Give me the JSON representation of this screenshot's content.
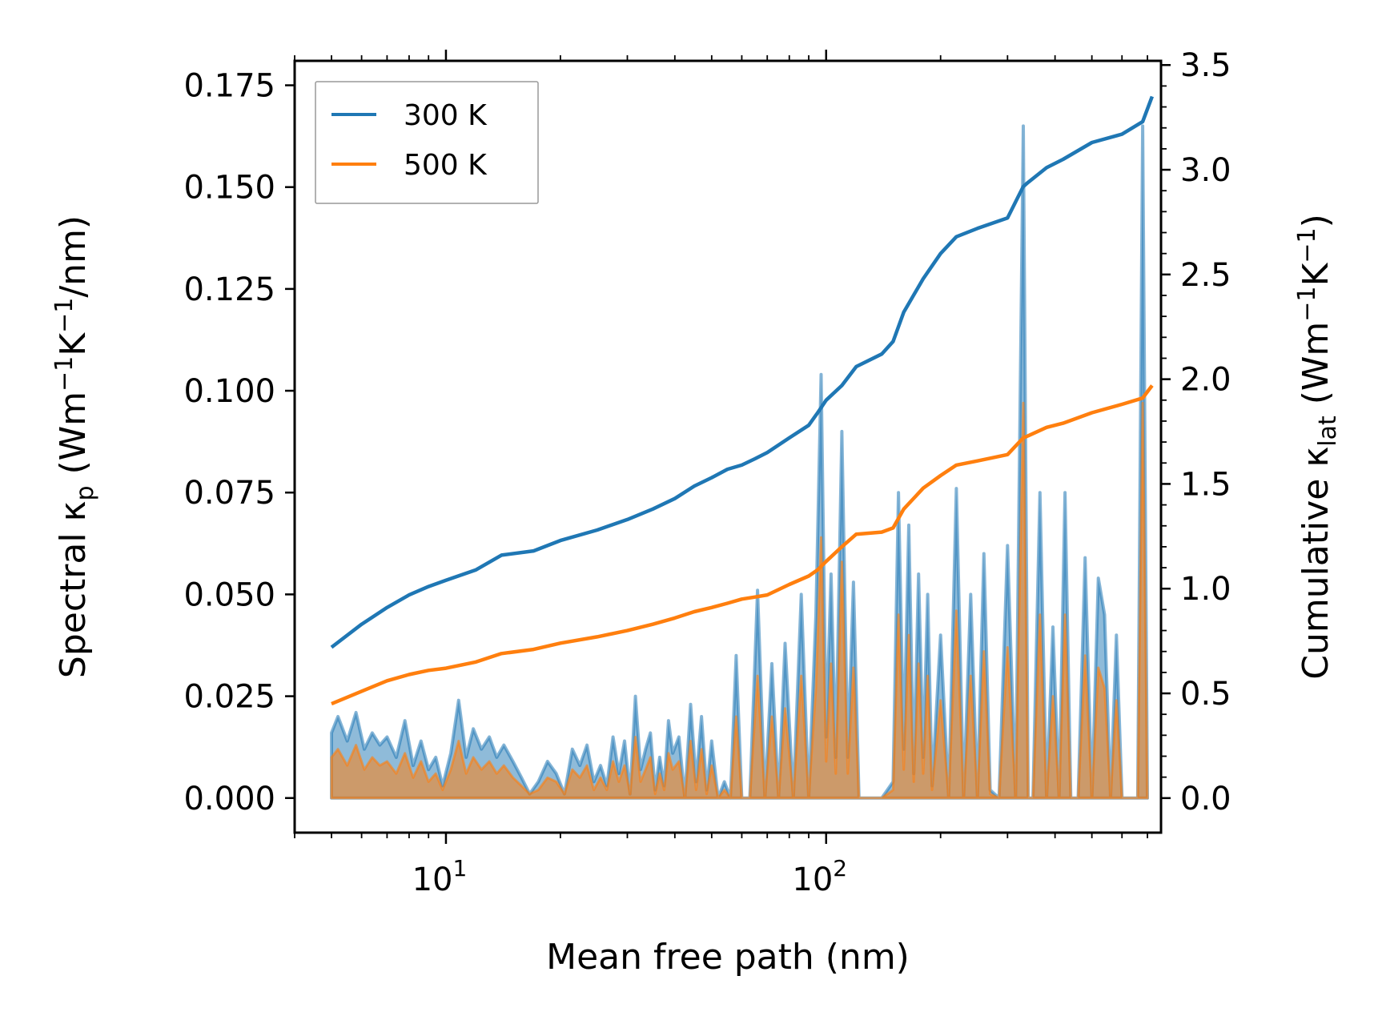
{
  "chart_data": {
    "type": "line",
    "xlabel": "Mean free path (nm)",
    "ylabel_left": {
      "main": "Spectral κ",
      "sub": "p",
      "unit_pre": " (Wm",
      "sup1": "−1",
      "unit_mid": "K",
      "sup2": "−1",
      "unit_post": "/nm)"
    },
    "ylabel_right": {
      "main": "Cumulative κ",
      "sub": "lat",
      "unit_pre": " (Wm",
      "sup1": "−1",
      "unit_mid": "K",
      "sup2": "−1",
      "unit_post": ")"
    },
    "x_scale": "log",
    "xlim": [
      4.0,
      760
    ],
    "ylim_left": [
      -0.0085,
      0.181
    ],
    "ylim_right": [
      -0.165,
      3.52
    ],
    "x_ticks": [
      {
        "value": 10,
        "base": "10",
        "exp": "1"
      },
      {
        "value": 100,
        "base": "10",
        "exp": "2"
      }
    ],
    "y_ticks_left": [
      "0.000",
      "0.025",
      "0.050",
      "0.075",
      "0.100",
      "0.125",
      "0.150",
      "0.175"
    ],
    "y_ticks_right": [
      "0.0",
      "0.5",
      "1.0",
      "1.5",
      "2.0",
      "2.5",
      "3.0",
      "3.5"
    ],
    "legend": {
      "position": "top-left",
      "entries": [
        "300 K",
        "500 K"
      ]
    },
    "colors": {
      "s300": "#1f77b4",
      "s500": "#ff7f0e"
    },
    "series": [
      {
        "name": "300 K",
        "cumulative": {
          "x": [
            5.0,
            6.0,
            7.0,
            8.0,
            9.0,
            10.0,
            12.0,
            14.0,
            17.0,
            20.0,
            25.0,
            30.0,
            35.0,
            40.0,
            45.0,
            50.0,
            55.0,
            60.0,
            65.0,
            70.0,
            80.0,
            90.0,
            95.0,
            100.0,
            110.0,
            120.0,
            140.0,
            150.0,
            160.0,
            180.0,
            200.0,
            220.0,
            250.0,
            300.0,
            330.0,
            340.0,
            380.0,
            420.0,
            500.0,
            600.0,
            680.0,
            720.0
          ],
          "y": [
            0.72,
            0.83,
            0.91,
            0.97,
            1.01,
            1.04,
            1.09,
            1.16,
            1.18,
            1.23,
            1.28,
            1.33,
            1.38,
            1.43,
            1.49,
            1.53,
            1.57,
            1.59,
            1.62,
            1.65,
            1.72,
            1.78,
            1.84,
            1.9,
            1.97,
            2.06,
            2.12,
            2.18,
            2.32,
            2.48,
            2.6,
            2.68,
            2.72,
            2.77,
            2.92,
            2.94,
            3.01,
            3.05,
            3.13,
            3.17,
            3.23,
            3.35
          ]
        },
        "spectral": {
          "x": [
            5.0,
            5.2,
            5.5,
            5.8,
            6.1,
            6.4,
            6.7,
            7.0,
            7.4,
            7.8,
            8.2,
            8.6,
            9.0,
            9.4,
            9.8,
            10.3,
            10.8,
            11.3,
            11.8,
            12.4,
            13.0,
            13.6,
            14.2,
            15.0,
            15.8,
            16.6,
            17.5,
            18.5,
            19.5,
            20.5,
            21.5,
            22.5,
            23.5,
            24.5,
            25.5,
            26.5,
            27.5,
            28.5,
            29.5,
            30.5,
            31.5,
            32.5,
            33.5,
            34.5,
            35.5,
            36.5,
            37.5,
            38.5,
            39.5,
            41.0,
            42.5,
            44.0,
            45.5,
            47.0,
            48.5,
            50.0,
            52.0,
            54.0,
            56.0,
            58.0,
            60.0,
            63.0,
            66.0,
            69.0,
            72.0,
            75.0,
            78.0,
            82.0,
            86.0,
            90.0,
            94.0,
            97.0,
            100.0,
            103.0,
            106.0,
            110.0,
            114.0,
            118.0,
            122.0,
            126.0,
            130.0,
            140.0,
            150.0,
            155.0,
            160.0,
            165.0,
            170.0,
            175.0,
            180.0,
            185.0,
            190.0,
            200.0,
            210.0,
            220.0,
            230.0,
            240.0,
            250.0,
            260.0,
            270.0,
            285.0,
            300.0,
            315.0,
            330.0,
            340.0,
            350.0,
            365.0,
            380.0,
            395.0,
            410.0,
            425.0,
            440.0,
            460.0,
            480.0,
            500.0,
            520.0,
            540.0,
            560.0,
            580.0,
            600.0,
            620.0,
            640.0,
            660.0,
            680.0,
            700.0
          ],
          "y300": [
            0.016,
            0.02,
            0.014,
            0.021,
            0.012,
            0.016,
            0.013,
            0.015,
            0.01,
            0.019,
            0.008,
            0.014,
            0.007,
            0.01,
            0.003,
            0.011,
            0.024,
            0.01,
            0.017,
            0.012,
            0.015,
            0.01,
            0.013,
            0.009,
            0.005,
            0.001,
            0.004,
            0.009,
            0.006,
            0.001,
            0.012,
            0.008,
            0.013,
            0.004,
            0.008,
            0.003,
            0.015,
            0.006,
            0.014,
            0.001,
            0.025,
            0.007,
            0.012,
            0.016,
            0.002,
            0.01,
            0.003,
            0.019,
            0.011,
            0.015,
            0.0,
            0.023,
            0.004,
            0.02,
            0.002,
            0.014,
            0.0,
            0.004,
            0.0,
            0.035,
            0.0,
            0.0,
            0.051,
            0.0,
            0.033,
            0.0,
            0.038,
            0.0,
            0.05,
            0.0,
            0.045,
            0.104,
            0.015,
            0.055,
            0.01,
            0.09,
            0.01,
            0.053,
            0.0,
            0.0,
            0.0,
            0.0,
            0.004,
            0.075,
            0.012,
            0.067,
            0.006,
            0.055,
            0.01,
            0.05,
            0.003,
            0.04,
            0.0,
            0.076,
            0.0,
            0.05,
            0.0,
            0.06,
            0.002,
            0.0,
            0.062,
            0.0,
            0.165,
            0.0,
            0.0,
            0.075,
            0.0,
            0.042,
            0.0,
            0.075,
            0.0,
            0.0,
            0.059,
            0.0,
            0.054,
            0.045,
            0.0,
            0.04,
            0.0,
            0.0,
            0.0,
            0.0,
            0.165,
            0.0
          ],
          "y500": [
            0.01,
            0.012,
            0.008,
            0.013,
            0.007,
            0.01,
            0.008,
            0.009,
            0.006,
            0.011,
            0.005,
            0.009,
            0.004,
            0.006,
            0.002,
            0.007,
            0.014,
            0.006,
            0.01,
            0.007,
            0.009,
            0.006,
            0.008,
            0.005,
            0.003,
            0.001,
            0.002,
            0.005,
            0.004,
            0.001,
            0.007,
            0.005,
            0.008,
            0.002,
            0.005,
            0.002,
            0.009,
            0.004,
            0.008,
            0.001,
            0.015,
            0.004,
            0.007,
            0.01,
            0.001,
            0.006,
            0.002,
            0.011,
            0.007,
            0.009,
            0.0,
            0.014,
            0.002,
            0.012,
            0.001,
            0.008,
            0.0,
            0.002,
            0.0,
            0.02,
            0.0,
            0.0,
            0.03,
            0.0,
            0.02,
            0.0,
            0.022,
            0.0,
            0.03,
            0.0,
            0.027,
            0.064,
            0.009,
            0.033,
            0.006,
            0.058,
            0.006,
            0.032,
            0.0,
            0.0,
            0.0,
            0.0,
            0.002,
            0.045,
            0.007,
            0.04,
            0.004,
            0.033,
            0.006,
            0.03,
            0.002,
            0.024,
            0.0,
            0.046,
            0.0,
            0.03,
            0.0,
            0.036,
            0.001,
            0.0,
            0.037,
            0.0,
            0.097,
            0.0,
            0.0,
            0.045,
            0.0,
            0.025,
            0.0,
            0.045,
            0.0,
            0.0,
            0.035,
            0.0,
            0.032,
            0.027,
            0.0,
            0.024,
            0.0,
            0.0,
            0.0,
            0.0,
            0.097,
            0.0
          ]
        }
      },
      {
        "name": "500 K",
        "cumulative": {
          "x": [
            5.0,
            6.0,
            7.0,
            8.0,
            9.0,
            10.0,
            12.0,
            14.0,
            17.0,
            20.0,
            25.0,
            30.0,
            35.0,
            40.0,
            45.0,
            50.0,
            55.0,
            60.0,
            65.0,
            70.0,
            80.0,
            90.0,
            95.0,
            100.0,
            110.0,
            120.0,
            140.0,
            150.0,
            160.0,
            180.0,
            200.0,
            220.0,
            250.0,
            300.0,
            330.0,
            340.0,
            380.0,
            420.0,
            500.0,
            600.0,
            680.0,
            720.0
          ],
          "y": [
            0.45,
            0.51,
            0.56,
            0.59,
            0.61,
            0.62,
            0.65,
            0.69,
            0.71,
            0.74,
            0.77,
            0.8,
            0.83,
            0.86,
            0.89,
            0.91,
            0.93,
            0.95,
            0.96,
            0.97,
            1.02,
            1.06,
            1.09,
            1.13,
            1.2,
            1.26,
            1.27,
            1.29,
            1.38,
            1.48,
            1.54,
            1.59,
            1.61,
            1.64,
            1.72,
            1.73,
            1.77,
            1.79,
            1.84,
            1.88,
            1.91,
            1.97
          ]
        }
      }
    ]
  }
}
